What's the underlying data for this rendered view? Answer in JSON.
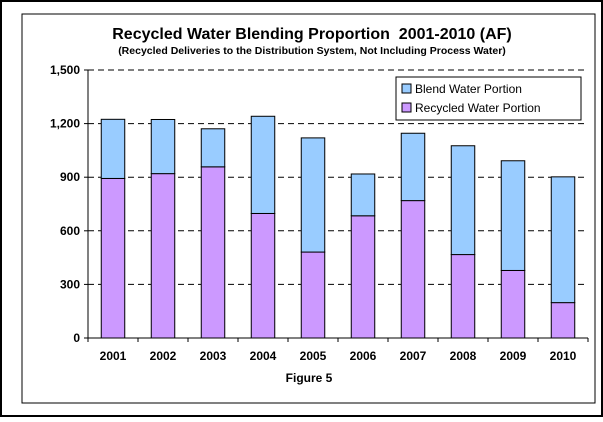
{
  "chart_data": {
    "type": "bar",
    "stacked": true,
    "title": "Recycled Water Blending Proportion  2001-2010 (AF)",
    "subtitle": "(Recycled Deliveries to the Distribution System, Not Including Process Water)",
    "caption": "Figure 5",
    "categories": [
      "2001",
      "2002",
      "2003",
      "2004",
      "2005",
      "2006",
      "2007",
      "2008",
      "2009",
      "2010"
    ],
    "series": [
      {
        "name": "Recycled Water Portion",
        "color": "#CC99FF",
        "values": [
          893,
          920,
          958,
          697,
          481,
          684,
          769,
          467,
          378,
          198
        ]
      },
      {
        "name": "Blend Water Portion",
        "color": "#99CCFF",
        "values": [
          331,
          303,
          213,
          544,
          639,
          234,
          377,
          609,
          614,
          704
        ]
      }
    ],
    "legend_order": [
      "Blend Water Portion",
      "Recycled Water Portion"
    ],
    "legend_position": "top-right",
    "ylim": [
      0,
      1500
    ],
    "yticks": [
      0,
      300,
      600,
      900,
      1200,
      1500
    ],
    "ytick_labels": [
      "0",
      "300",
      "600",
      "900",
      "1,200",
      "1,500"
    ],
    "grid": "horizontal dashed",
    "colors": {
      "plot_background": "#FFFFFF",
      "bar_stroke": "#000000",
      "border": "#000000"
    }
  }
}
